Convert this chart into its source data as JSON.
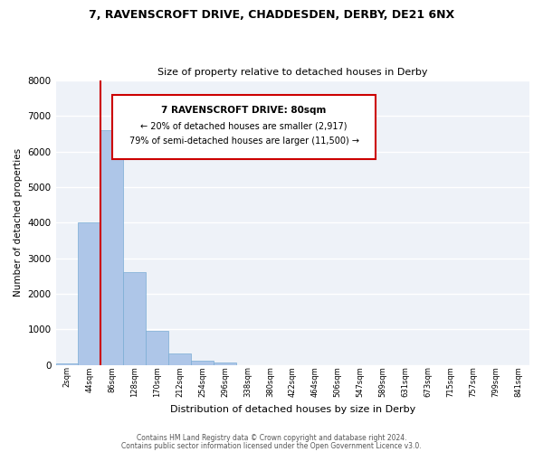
{
  "title": "7, RAVENSCROFT DRIVE, CHADDESDEN, DERBY, DE21 6NX",
  "subtitle": "Size of property relative to detached houses in Derby",
  "xlabel": "Distribution of detached houses by size in Derby",
  "ylabel": "Number of detached properties",
  "bar_color": "#aec6e8",
  "bar_edge_color": "#7aadd4",
  "background_color": "#eef2f8",
  "grid_color": "#ffffff",
  "categories": [
    "2sqm",
    "44sqm",
    "86sqm",
    "128sqm",
    "170sqm",
    "212sqm",
    "254sqm",
    "296sqm",
    "338sqm",
    "380sqm",
    "422sqm",
    "464sqm",
    "506sqm",
    "547sqm",
    "589sqm",
    "631sqm",
    "673sqm",
    "715sqm",
    "757sqm",
    "799sqm",
    "841sqm"
  ],
  "values": [
    50,
    4000,
    6600,
    2600,
    970,
    330,
    120,
    80,
    0,
    0,
    0,
    0,
    0,
    0,
    0,
    0,
    0,
    0,
    0,
    0,
    0
  ],
  "ylim": [
    0,
    8000
  ],
  "yticks": [
    0,
    1000,
    2000,
    3000,
    4000,
    5000,
    6000,
    7000,
    8000
  ],
  "property_line_color": "#cc0000",
  "property_line_x": 1.5,
  "annotation_line1": "7 RAVENSCROFT DRIVE: 80sqm",
  "annotation_line2": "← 20% of detached houses are smaller (2,917)",
  "annotation_line3": "79% of semi-detached houses are larger (11,500) →",
  "footer1": "Contains HM Land Registry data © Crown copyright and database right 2024.",
  "footer2": "Contains public sector information licensed under the Open Government Licence v3.0."
}
